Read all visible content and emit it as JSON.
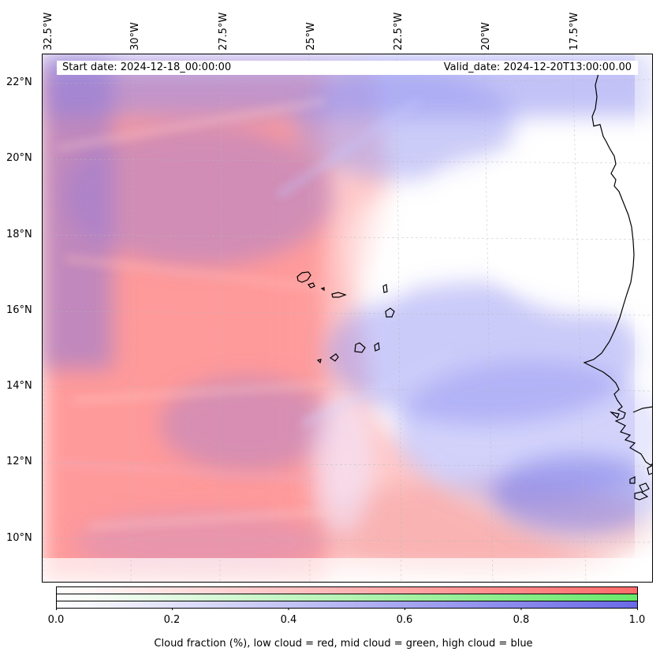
{
  "map": {
    "start_date": "Start date: 2024-12-18_00:00:00",
    "valid_date": "Valid_date: 2024-12-20T13:00:00.00",
    "lon_labels": [
      "32.5°W",
      "30°W",
      "27.5°W",
      "25°W",
      "22.5°W",
      "20°W",
      "17.5°W"
    ],
    "lat_labels": [
      "22°N",
      "20°N",
      "18°N",
      "16°N",
      "14°N",
      "12°N",
      "10°N"
    ],
    "colors": {
      "low_cloud": "#ff7a7a",
      "mid_cloud": "#7ae87a",
      "high_cloud": "#7a7ae8",
      "coastline": "#000000"
    }
  },
  "colorbar": {
    "ticks": [
      "0.0",
      "0.2",
      "0.4",
      "0.6",
      "0.8",
      "1.0"
    ],
    "label": "Cloud fraction (%), low cloud = red, mid cloud = green, high cloud = blue"
  }
}
